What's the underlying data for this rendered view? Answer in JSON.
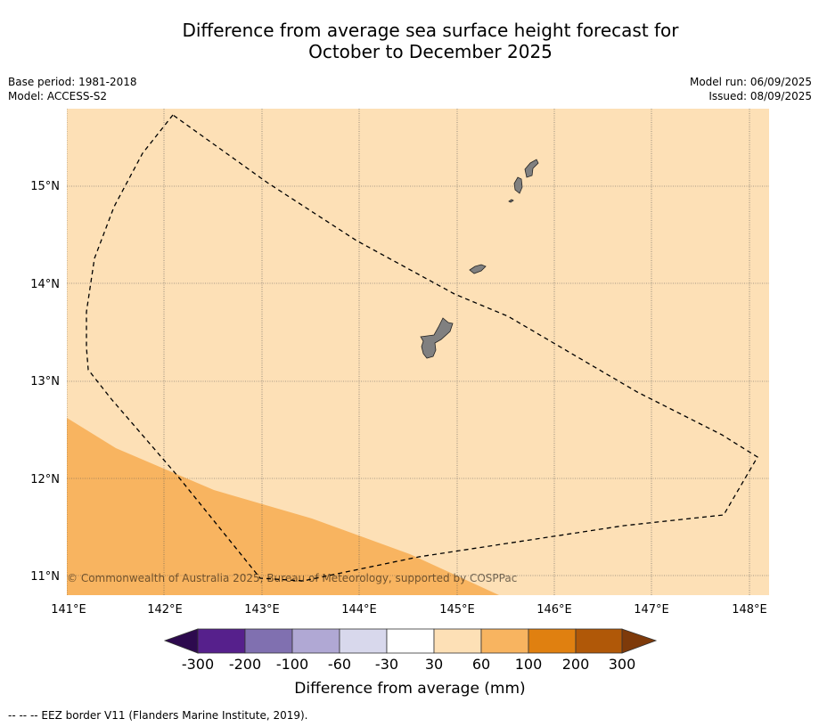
{
  "title_line1": "Difference from average sea surface height forecast for",
  "title_line2": "October to December 2025",
  "base_period": "Base period: 1981-2018",
  "model": "Model: ACCESS-S2",
  "model_run": "Model run: 06/09/2025",
  "issued": "Issued: 08/09/2025",
  "copyright": "© Commonwealth of Australia 2025, Bureau of Meteorology, supported by COSPPac",
  "lon_labels": [
    "141°E",
    "142°E",
    "143°E",
    "144°E",
    "145°E",
    "146°E",
    "147°E",
    "148°E"
  ],
  "lat_labels": [
    "15°N",
    "14°N",
    "13°N",
    "12°N",
    "11°N"
  ],
  "legend": {
    "title": "Difference from average (mm)",
    "ticks": [
      "-300",
      "-200",
      "-100",
      "-60",
      "-30",
      "30",
      "60",
      "100",
      "200",
      "300"
    ],
    "colors": [
      "#2d0a4e",
      "#56208c",
      "#8070b0",
      "#b0a8d4",
      "#d8d8ec",
      "#ffffff",
      "#fde0b6",
      "#f8b460",
      "#e08010",
      "#b05808",
      "#7e3a0a"
    ]
  },
  "map_colors": {
    "background_band": "#fde0b6",
    "anomaly_band": "#f8b460",
    "land": "#808080"
  },
  "footer": "--  --  -- EEZ border V11 (Flanders Marine Institute, 2019)."
}
